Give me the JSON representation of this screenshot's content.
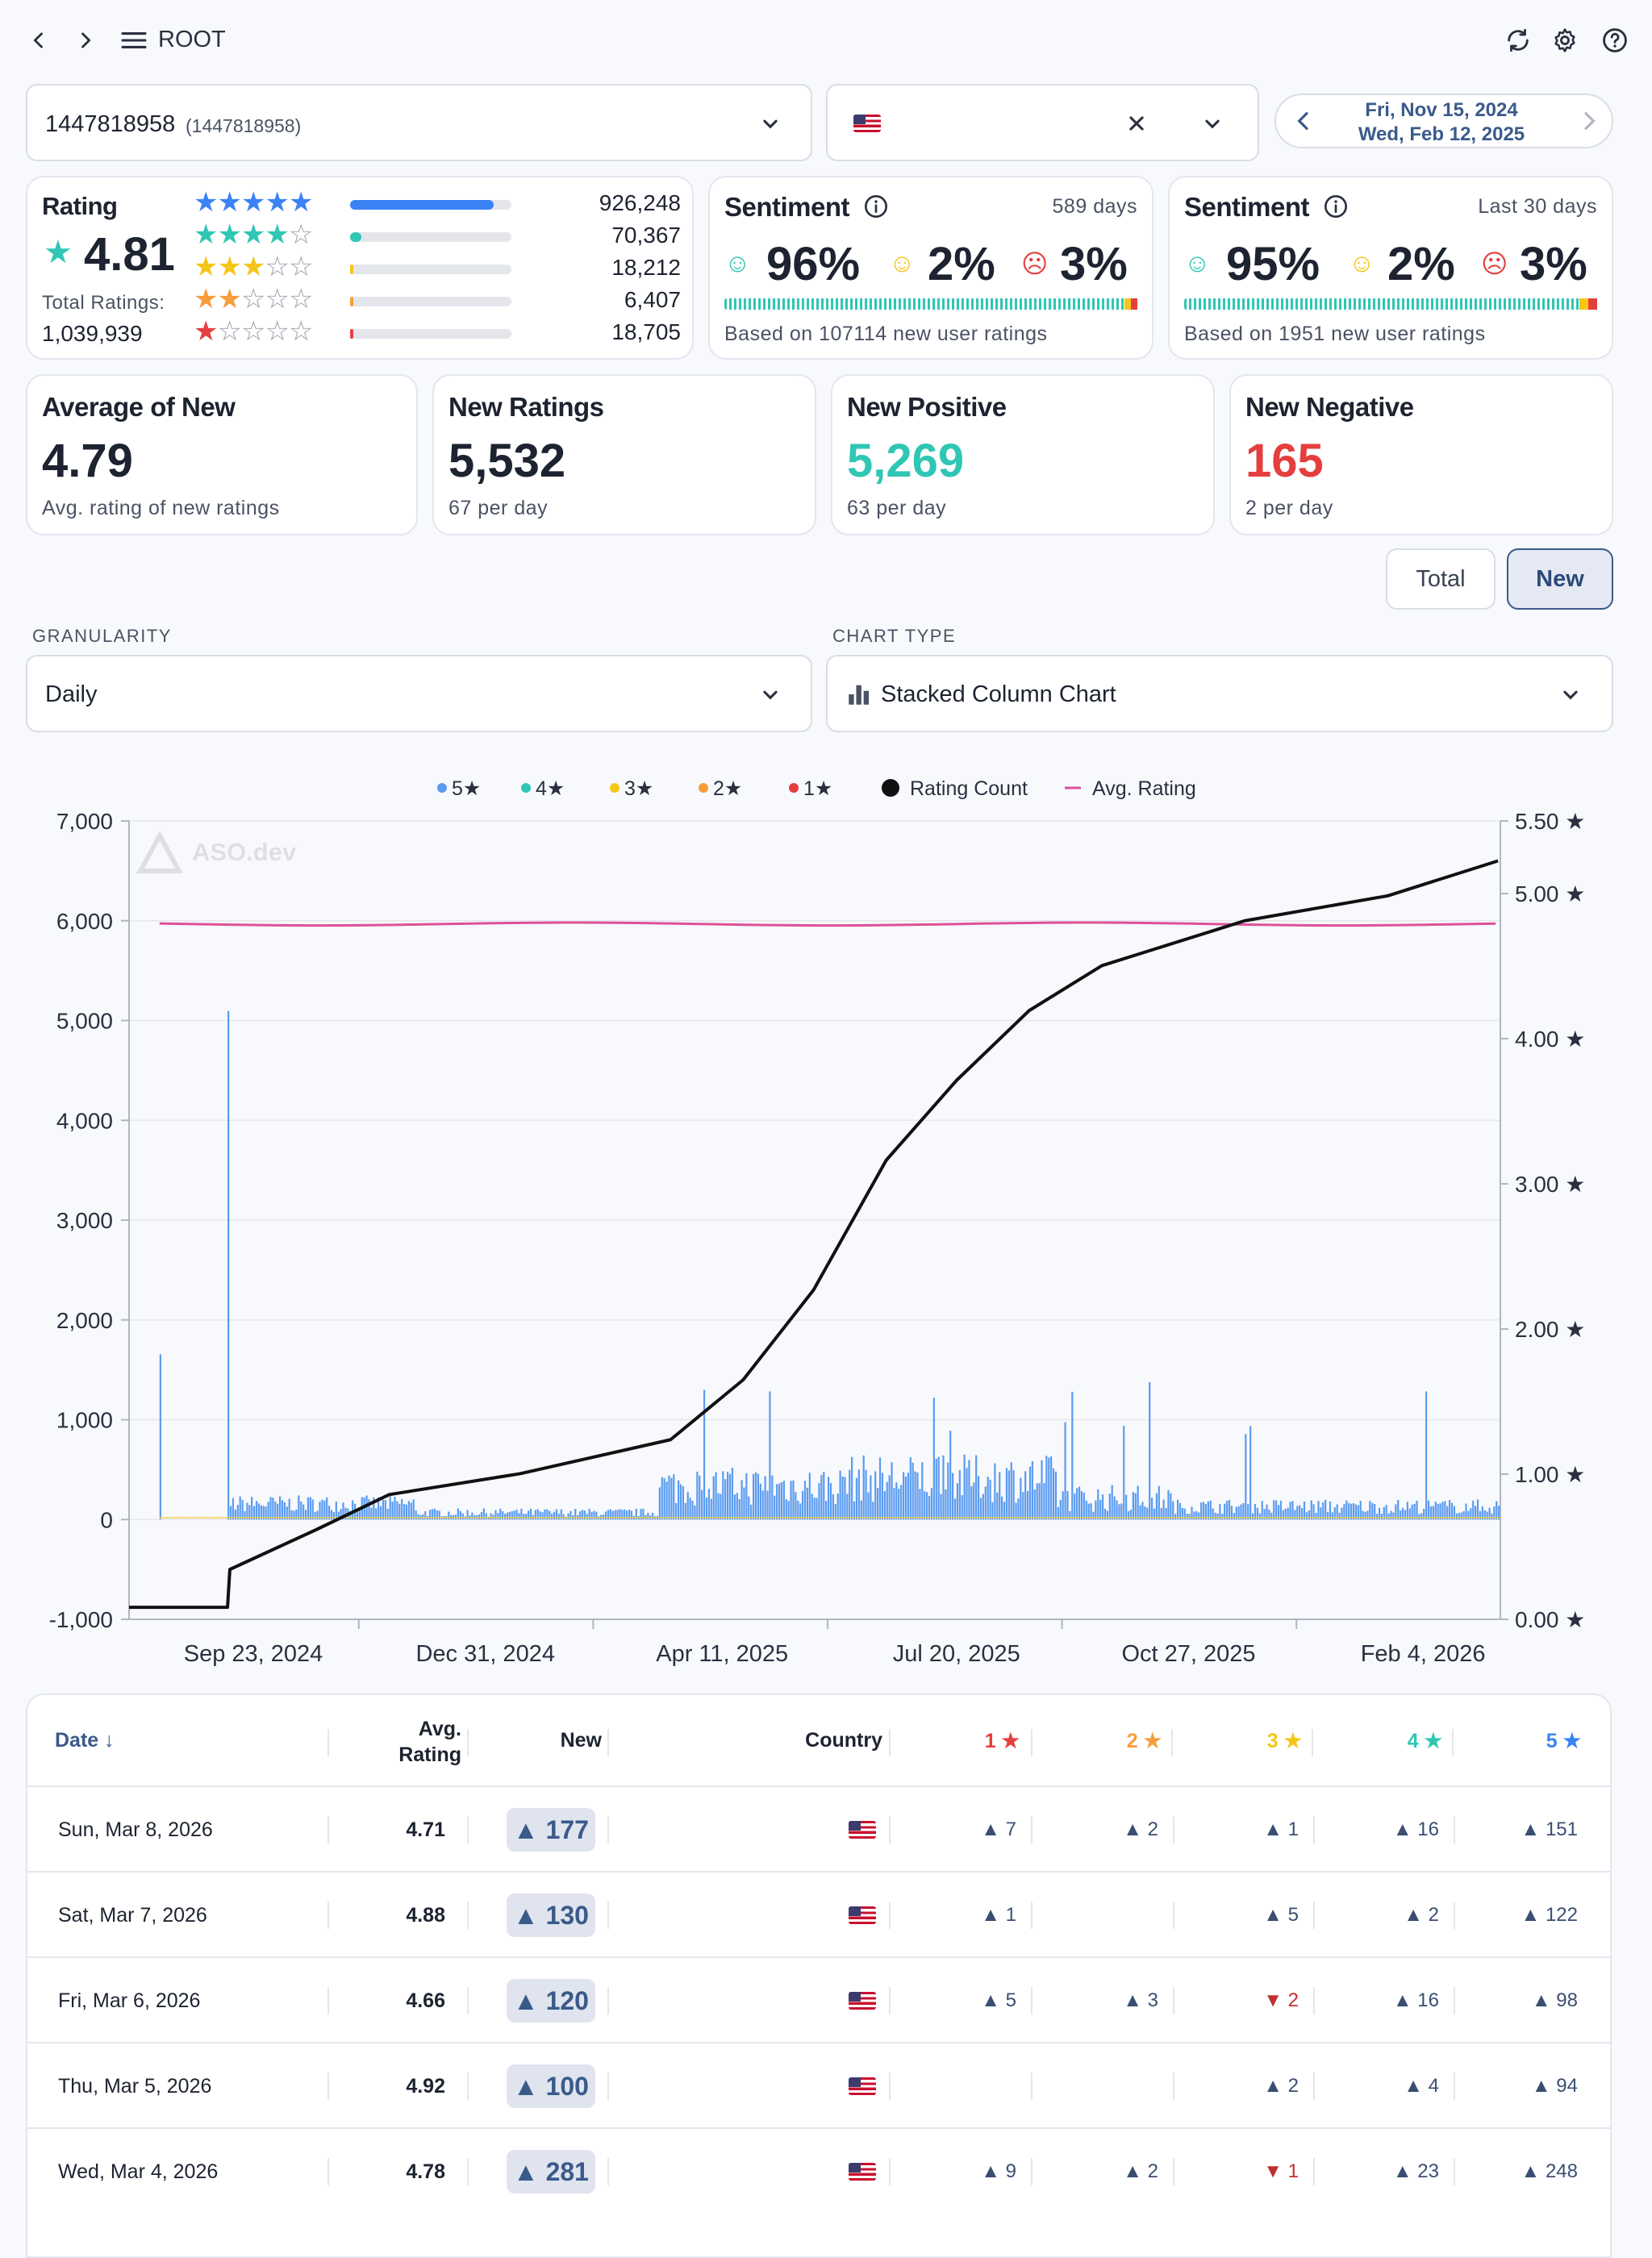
{
  "nav": {
    "title": "ROOT"
  },
  "app_select": {
    "name": "1447818958",
    "id": "(1447818958)"
  },
  "date_range": {
    "start": "Fri, Nov 15, 2024",
    "end": "Wed, Feb 12, 2025"
  },
  "rating": {
    "label": "Rating",
    "value": "4.81",
    "total_label": "Total Ratings:",
    "total": "1,039,939",
    "breakdown": [
      {
        "stars": 5,
        "count": "926,248",
        "fraction": 0.89,
        "color": "#3b82f6"
      },
      {
        "stars": 4,
        "count": "70,367",
        "fraction": 0.068,
        "color": "#2fc6b4"
      },
      {
        "stars": 3,
        "count": "18,212",
        "fraction": 0.018,
        "color": "#f5c518"
      },
      {
        "stars": 2,
        "count": "6,407",
        "fraction": 0.006,
        "color": "#f59e3b"
      },
      {
        "stars": 1,
        "count": "18,705",
        "fraction": 0.018,
        "color": "#e53e3e"
      }
    ]
  },
  "sentiment_total": {
    "label": "Sentiment",
    "period": "589 days",
    "positive": "96%",
    "neutral": "2%",
    "negative": "3%",
    "note": "Based on 107114 new user ratings"
  },
  "sentiment_recent": {
    "label": "Sentiment",
    "period": "Last 30 days",
    "positive": "95%",
    "neutral": "2%",
    "negative": "3%",
    "note": "Based on 1951 new user ratings"
  },
  "metrics": [
    {
      "title": "Average of New",
      "value": "4.79",
      "sub": "Avg. rating of new ratings",
      "color": "#1d2330"
    },
    {
      "title": "New Ratings",
      "value": "5,532",
      "sub": "67 per day",
      "color": "#1d2330"
    },
    {
      "title": "New Positive",
      "value": "5,269",
      "sub": "63 per day",
      "color": "#2fc6b4"
    },
    {
      "title": "New Negative",
      "value": "165",
      "sub": "2 per day",
      "color": "#e53e3e"
    }
  ],
  "toggle": {
    "total": "Total",
    "new": "New"
  },
  "granularity": {
    "label": "GRANULARITY",
    "value": "Daily"
  },
  "chart_type": {
    "label": "CHART TYPE",
    "value": "Stacked Column Chart"
  },
  "colors": {
    "five": "#5b9bf0",
    "four": "#2fc6b4",
    "three": "#f5c518",
    "two": "#f59e3b",
    "one": "#e53e3e",
    "count": "#111111",
    "avg": "#e0509a"
  },
  "chart_data": {
    "type": "bar",
    "stacked": true,
    "legend": [
      "5★",
      "4★",
      "3★",
      "2★",
      "1★",
      "Rating Count",
      "Avg. Rating"
    ],
    "legend_position": "top-center",
    "watermark": "ASO.dev",
    "x_ticks": [
      "Sep 23, 2024",
      "Dec 31, 2024",
      "Apr 11, 2025",
      "Jul 20, 2025",
      "Oct 27, 2025",
      "Feb 4, 2026"
    ],
    "y_left_ticks": [
      "7,000",
      "6,000",
      "5,000",
      "4,000",
      "3,000",
      "2,000",
      "1,000",
      "0",
      "-1,000"
    ],
    "y_left_range": [
      -1000,
      7000
    ],
    "y_right_ticks": [
      "5.50 ★",
      "5.00 ★",
      "4.00 ★",
      "3.00 ★",
      "2.00 ★",
      "1.00 ★",
      "0.00 ★"
    ],
    "y_right_range": [
      0,
      5.5
    ],
    "grid": "horizontal",
    "series": [
      {
        "name": "5★",
        "x": [
          "Aug 2024",
          "Aug 2024",
          "Sep 2024",
          "Dec 2024",
          "Apr 2025",
          "Jun 2025",
          "Jul 2025",
          "Sep 2025",
          "Oct 2025",
          "Feb 2026",
          "Mar 2026"
        ],
        "values": [
          1780,
          0,
          5480,
          200,
          1380,
          1200,
          1050,
          600,
          1480,
          150,
          180
        ]
      },
      {
        "name": "Rating Count",
        "x": [
          "Aug 2024",
          "Sep 2024",
          "Dec 2024",
          "Mar 2025",
          "Apr 2025",
          "May 2025",
          "Jul 2025",
          "Oct 2025",
          "Feb 2026",
          "Mar 2026"
        ],
        "values": [
          -880,
          0,
          350,
          700,
          1400,
          2300,
          4100,
          5500,
          6200,
          6600
        ]
      },
      {
        "name": "Avg. Rating",
        "x": [
          "Aug 2024",
          "Mar 2026"
        ],
        "values": [
          4.81,
          4.79
        ]
      }
    ]
  },
  "table": {
    "headers": {
      "date": "Date ↓",
      "avg": "Avg.",
      "avg2": "Rating",
      "new": "New",
      "country": "Country",
      "s1": "1 ★",
      "s2": "2 ★",
      "s3": "3 ★",
      "s4": "4 ★",
      "s5": "5 ★"
    },
    "rows": [
      {
        "date": "Sun, Mar 8, 2026",
        "avg": "4.71",
        "new": "▲ 177",
        "s1": "▲ 7",
        "s2": "▲ 2",
        "s3": "▲ 1",
        "s4": "▲ 16",
        "s5": "▲ 151"
      },
      {
        "date": "Sat, Mar 7, 2026",
        "avg": "4.88",
        "new": "▲ 130",
        "s1": "▲ 1",
        "s2": "",
        "s3": "▲ 5",
        "s4": "▲ 2",
        "s5": "▲ 122"
      },
      {
        "date": "Fri, Mar 6, 2026",
        "avg": "4.66",
        "new": "▲ 120",
        "s1": "▲ 5",
        "s2": "▲ 3",
        "s3": "▼ 2",
        "s4": "▲ 16",
        "s5": "▲ 98"
      },
      {
        "date": "Thu, Mar 5, 2026",
        "avg": "4.92",
        "new": "▲ 100",
        "s1": "",
        "s2": "",
        "s3": "▲ 2",
        "s4": "▲ 4",
        "s5": "▲ 94"
      },
      {
        "date": "Wed, Mar 4, 2026",
        "avg": "4.78",
        "new": "▲ 281",
        "s1": "▲ 9",
        "s2": "▲ 2",
        "s3": "▼ 1",
        "s4": "▲ 23",
        "s5": "▲ 248"
      }
    ]
  }
}
